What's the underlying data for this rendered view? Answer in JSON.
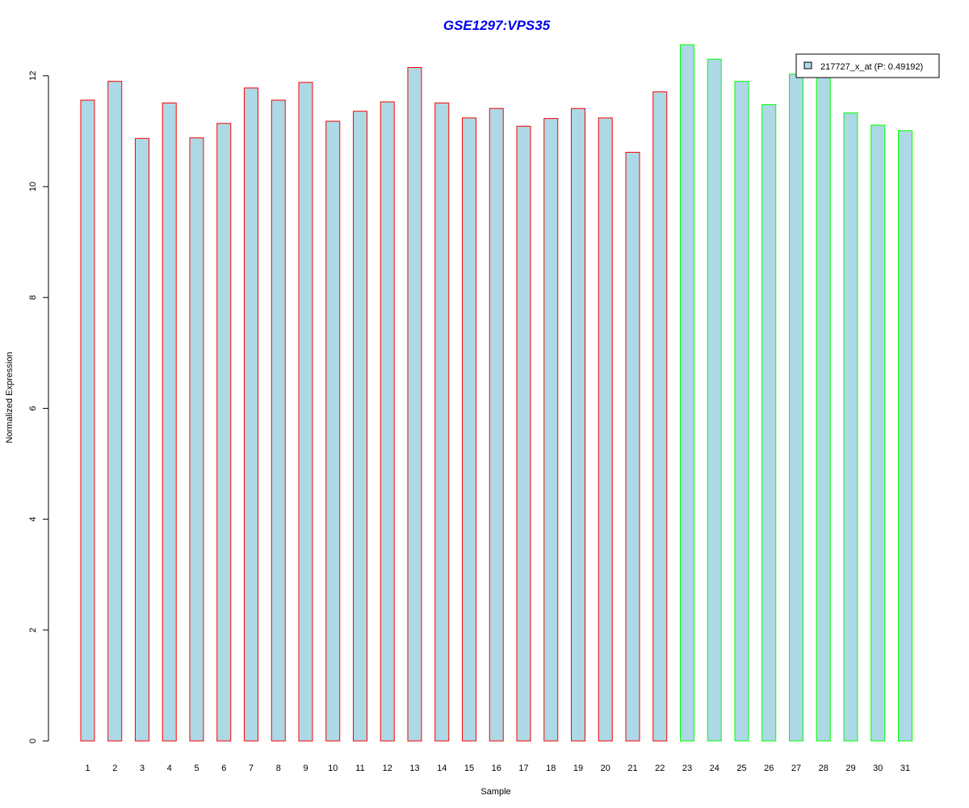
{
  "chart_data": {
    "type": "bar",
    "title": "GSE1297:VPS35",
    "xlabel": "Sample",
    "ylabel": "Normalized Expression",
    "ylim": [
      0,
      12.5
    ],
    "yticks": [
      0,
      2,
      4,
      6,
      8,
      10,
      12
    ],
    "categories": [
      "1",
      "2",
      "3",
      "4",
      "5",
      "6",
      "7",
      "8",
      "9",
      "10",
      "11",
      "12",
      "13",
      "14",
      "15",
      "16",
      "17",
      "18",
      "19",
      "20",
      "21",
      "22",
      "23",
      "24",
      "25",
      "26",
      "27",
      "28",
      "29",
      "30",
      "31"
    ],
    "values": [
      11.56,
      11.9,
      10.87,
      11.51,
      10.88,
      11.14,
      11.78,
      11.56,
      11.88,
      11.18,
      11.36,
      11.53,
      12.15,
      11.51,
      11.24,
      11.41,
      11.09,
      11.23,
      11.41,
      11.24,
      10.62,
      11.71,
      12.56,
      12.3,
      11.9,
      11.48,
      12.03,
      12.02,
      11.33,
      11.11,
      11.01
    ],
    "groups": [
      "red",
      "red",
      "red",
      "red",
      "red",
      "red",
      "red",
      "red",
      "red",
      "red",
      "red",
      "red",
      "red",
      "red",
      "red",
      "red",
      "red",
      "red",
      "red",
      "red",
      "red",
      "red",
      "green",
      "green",
      "green",
      "green",
      "green",
      "green",
      "green",
      "green",
      "green"
    ],
    "legend": {
      "label": "217727_x_at (P: 0.49192)",
      "position": "top-right"
    },
    "grid": false,
    "colors": {
      "fill": "#add8e6",
      "red": "#ff0000",
      "green": "#00ff00",
      "title": "#0000ee",
      "axis": "#000000"
    }
  }
}
